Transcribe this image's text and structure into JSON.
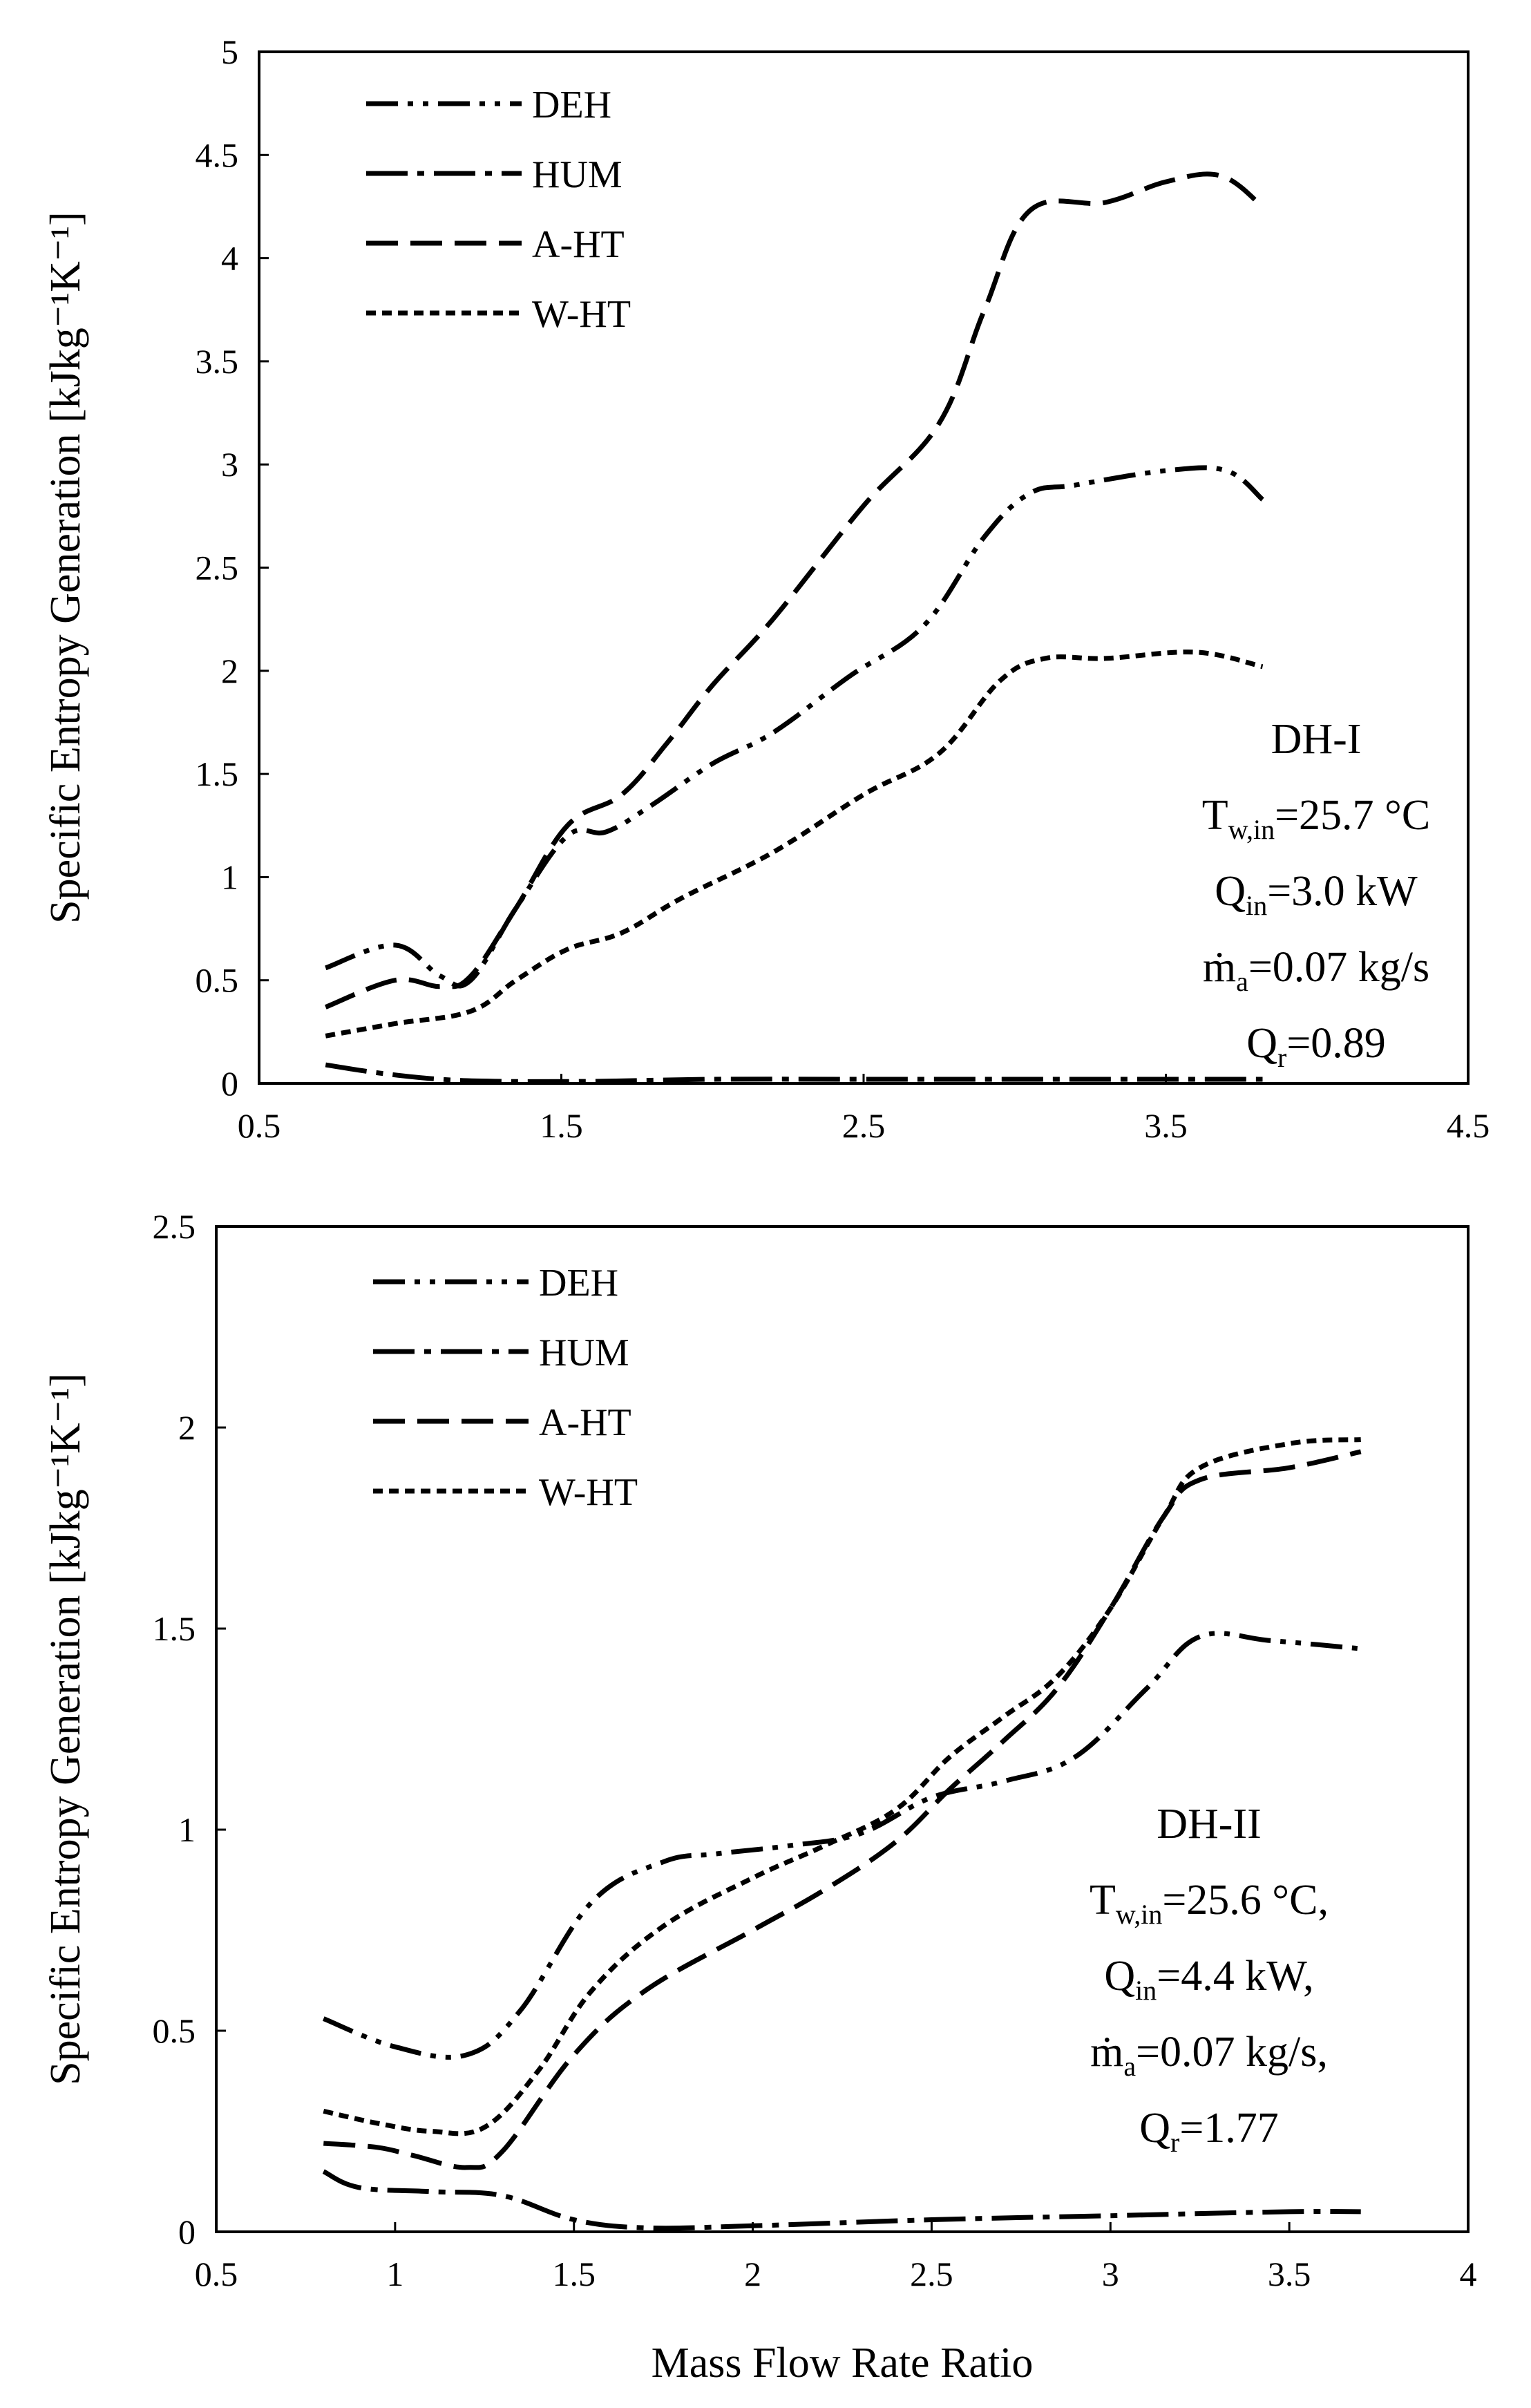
{
  "chart_data": [
    {
      "type": "line",
      "title": "",
      "xlabel": "",
      "ylabel": "Specific Entropy Generation [kJkg⁻¹K⁻¹]",
      "xlim": [
        0.5,
        4.5
      ],
      "ylim": [
        0,
        5
      ],
      "xticks": [
        "0.5",
        "1.5",
        "2.5",
        "3.5",
        "4.5"
      ],
      "yticks": [
        "0",
        "0.5",
        "1",
        "1.5",
        "2",
        "2.5",
        "3",
        "3.5",
        "4",
        "4.5",
        "5"
      ],
      "grid": false,
      "legend": "top-left",
      "annotation": {
        "name": "DH-I",
        "lines": [
          {
            "main": "T",
            "sub": "w,in",
            "rest": "=25.7 °C"
          },
          {
            "main": "Q",
            "sub": "in",
            "rest": "=3.0 kW"
          },
          {
            "main": "ṁ",
            "sub": "a",
            "rest": "=0.07 kg/s"
          },
          {
            "main": "Q",
            "sub": "r",
            "rest": "=0.89"
          }
        ]
      },
      "series": [
        {
          "name": "DEH",
          "dash": "dash-dot-dot",
          "x": [
            0.72,
            0.95,
            1.1,
            1.2,
            1.35,
            1.52,
            1.65,
            1.8,
            2.0,
            2.2,
            2.45,
            2.7,
            2.9,
            3.05,
            3.2,
            3.5,
            3.7,
            3.82
          ],
          "y": [
            0.56,
            0.67,
            0.52,
            0.5,
            0.85,
            1.2,
            1.22,
            1.35,
            1.55,
            1.7,
            1.97,
            2.22,
            2.65,
            2.86,
            2.9,
            2.97,
            2.97,
            2.83
          ]
        },
        {
          "name": "HUM",
          "dash": "dash-dot",
          "x": [
            0.72,
            0.9,
            1.1,
            1.3,
            1.6,
            2.0,
            2.5,
            3.0,
            3.5,
            3.82
          ],
          "y": [
            0.09,
            0.05,
            0.02,
            0.01,
            0.01,
            0.02,
            0.02,
            0.02,
            0.02,
            0.02
          ]
        },
        {
          "name": "A-HT",
          "dash": "long-dash",
          "x": [
            0.72,
            0.95,
            1.1,
            1.2,
            1.35,
            1.52,
            1.7,
            1.85,
            2.0,
            2.2,
            2.5,
            2.75,
            2.9,
            3.05,
            3.3,
            3.5,
            3.68,
            3.82
          ],
          "y": [
            0.37,
            0.5,
            0.47,
            0.52,
            0.85,
            1.25,
            1.4,
            1.65,
            1.93,
            2.25,
            2.8,
            3.2,
            3.75,
            4.23,
            4.27,
            4.37,
            4.4,
            4.25
          ]
        },
        {
          "name": "W-HT",
          "dash": "short-dash",
          "x": [
            0.72,
            0.95,
            1.2,
            1.35,
            1.52,
            1.7,
            1.9,
            2.2,
            2.5,
            2.75,
            2.95,
            3.1,
            3.3,
            3.6,
            3.82
          ],
          "y": [
            0.23,
            0.29,
            0.35,
            0.5,
            0.65,
            0.73,
            0.9,
            1.12,
            1.4,
            1.6,
            1.95,
            2.06,
            2.06,
            2.09,
            2.02
          ]
        }
      ]
    },
    {
      "type": "line",
      "title": "",
      "xlabel": "Mass Flow Rate Ratio",
      "ylabel": "Specific Entropy Generation [kJkg⁻¹K⁻¹]",
      "xlim": [
        0.5,
        4
      ],
      "ylim": [
        0,
        2.5
      ],
      "xticks": [
        "0.5",
        "1",
        "1.5",
        "2",
        "2.5",
        "3",
        "3.5",
        "4"
      ],
      "yticks": [
        "0",
        "0.5",
        "1",
        "1.5",
        "2",
        "2.5"
      ],
      "grid": false,
      "legend": "top-left",
      "annotation": {
        "name": "DH-II",
        "lines": [
          {
            "main": "T",
            "sub": "w,in",
            "rest": "=25.6 °C,"
          },
          {
            "main": "Q",
            "sub": "in",
            "rest": "=4.4 kW,"
          },
          {
            "main": "ṁ",
            "sub": "a",
            "rest": "=0.07 kg/s,"
          },
          {
            "main": "Q",
            "sub": "r",
            "rest": "=1.77"
          }
        ]
      },
      "series": [
        {
          "name": "DEH",
          "dash": "dash-dot-dot",
          "x": [
            0.8,
            1.0,
            1.2,
            1.35,
            1.55,
            1.75,
            1.9,
            2.1,
            2.3,
            2.5,
            2.7,
            2.9,
            3.1,
            3.25,
            3.45,
            3.7
          ],
          "y": [
            0.53,
            0.46,
            0.44,
            0.55,
            0.82,
            0.92,
            0.94,
            0.96,
            0.99,
            1.08,
            1.12,
            1.18,
            1.35,
            1.48,
            1.47,
            1.45
          ]
        },
        {
          "name": "HUM",
          "dash": "dash-dot",
          "x": [
            0.8,
            0.9,
            1.1,
            1.3,
            1.5,
            1.7,
            2.0,
            2.5,
            3.0,
            3.5,
            3.7
          ],
          "y": [
            0.15,
            0.11,
            0.1,
            0.09,
            0.03,
            0.01,
            0.015,
            0.03,
            0.04,
            0.05,
            0.05
          ]
        },
        {
          "name": "A-HT",
          "dash": "long-dash",
          "x": [
            0.8,
            0.95,
            1.05,
            1.2,
            1.3,
            1.5,
            1.7,
            2.0,
            2.2,
            2.4,
            2.55,
            2.7,
            2.85,
            3.0,
            3.15,
            3.25,
            3.5,
            3.7
          ],
          "y": [
            0.22,
            0.21,
            0.19,
            0.16,
            0.2,
            0.44,
            0.6,
            0.75,
            0.85,
            0.97,
            1.1,
            1.22,
            1.35,
            1.55,
            1.78,
            1.87,
            1.9,
            1.94
          ]
        },
        {
          "name": "W-HT",
          "dash": "short-dash",
          "x": [
            0.8,
            0.95,
            1.1,
            1.25,
            1.4,
            1.55,
            1.75,
            2.0,
            2.2,
            2.4,
            2.55,
            2.7,
            2.85,
            3.0,
            3.15,
            3.25,
            3.5,
            3.7
          ],
          "y": [
            0.3,
            0.27,
            0.25,
            0.26,
            0.4,
            0.6,
            0.76,
            0.88,
            0.96,
            1.05,
            1.18,
            1.28,
            1.38,
            1.55,
            1.78,
            1.9,
            1.96,
            1.97
          ]
        }
      ]
    }
  ]
}
